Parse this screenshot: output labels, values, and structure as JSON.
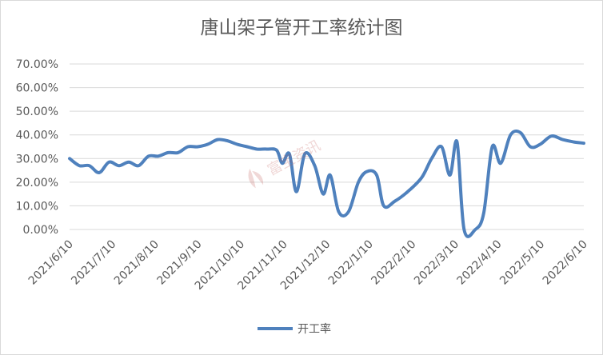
{
  "chart_data": {
    "type": "line",
    "title": "唐山架子管开工率统计图",
    "xlabel": "",
    "ylabel": "",
    "ylim": [
      0,
      0.7
    ],
    "y_ticks": [
      "0.00%",
      "10.00%",
      "20.00%",
      "30.00%",
      "40.00%",
      "50.00%",
      "60.00%",
      "70.00%"
    ],
    "x_ticks": [
      "2021/6/10",
      "2021/7/10",
      "2021/8/10",
      "2021/9/10",
      "2021/10/10",
      "2021/11/10",
      "2021/12/10",
      "2022/1/10",
      "2022/2/10",
      "2022/3/10",
      "2022/4/10",
      "2022/5/10",
      "2022/6/10"
    ],
    "grid": true,
    "legend_position": "bottom",
    "color": "#4f81bd",
    "series": [
      {
        "name": "开工率",
        "points": [
          [
            "2021-06-10",
            0.3
          ],
          [
            "2021-06-17",
            0.27
          ],
          [
            "2021-06-24",
            0.27
          ],
          [
            "2021-07-01",
            0.24
          ],
          [
            "2021-07-08",
            0.285
          ],
          [
            "2021-07-15",
            0.27
          ],
          [
            "2021-07-22",
            0.285
          ],
          [
            "2021-07-29",
            0.27
          ],
          [
            "2021-08-05",
            0.31
          ],
          [
            "2021-08-12",
            0.31
          ],
          [
            "2021-08-19",
            0.325
          ],
          [
            "2021-08-26",
            0.325
          ],
          [
            "2021-09-02",
            0.35
          ],
          [
            "2021-09-09",
            0.35
          ],
          [
            "2021-09-16",
            0.36
          ],
          [
            "2021-09-23",
            0.38
          ],
          [
            "2021-09-30",
            0.375
          ],
          [
            "2021-10-07",
            0.36
          ],
          [
            "2021-10-14",
            0.35
          ],
          [
            "2021-10-21",
            0.34
          ],
          [
            "2021-10-28",
            0.34
          ],
          [
            "2021-11-04",
            0.335
          ],
          [
            "2021-11-08",
            0.28
          ],
          [
            "2021-11-13",
            0.32
          ],
          [
            "2021-11-18",
            0.16
          ],
          [
            "2021-11-24",
            0.32
          ],
          [
            "2021-12-01",
            0.27
          ],
          [
            "2021-12-07",
            0.15
          ],
          [
            "2021-12-12",
            0.23
          ],
          [
            "2021-12-18",
            0.075
          ],
          [
            "2021-12-25",
            0.075
          ],
          [
            "2022-01-01",
            0.2
          ],
          [
            "2022-01-07",
            0.245
          ],
          [
            "2022-01-14",
            0.23
          ],
          [
            "2022-01-19",
            0.1
          ],
          [
            "2022-01-27",
            0.12
          ],
          [
            "2022-02-05",
            0.16
          ],
          [
            "2022-02-15",
            0.22
          ],
          [
            "2022-02-22",
            0.3
          ],
          [
            "2022-03-01",
            0.35
          ],
          [
            "2022-03-07",
            0.23
          ],
          [
            "2022-03-12",
            0.37
          ],
          [
            "2022-03-17",
            0.0
          ],
          [
            "2022-03-25",
            0.0
          ],
          [
            "2022-03-31",
            0.07
          ],
          [
            "2022-04-06",
            0.35
          ],
          [
            "2022-04-12",
            0.28
          ],
          [
            "2022-04-19",
            0.4
          ],
          [
            "2022-04-26",
            0.41
          ],
          [
            "2022-05-03",
            0.35
          ],
          [
            "2022-05-10",
            0.36
          ],
          [
            "2022-05-18",
            0.395
          ],
          [
            "2022-05-26",
            0.38
          ],
          [
            "2022-06-03",
            0.37
          ],
          [
            "2022-06-10",
            0.365
          ]
        ]
      }
    ]
  },
  "watermark": {
    "text": "富宝资讯",
    "icon": "fubao-logo"
  }
}
